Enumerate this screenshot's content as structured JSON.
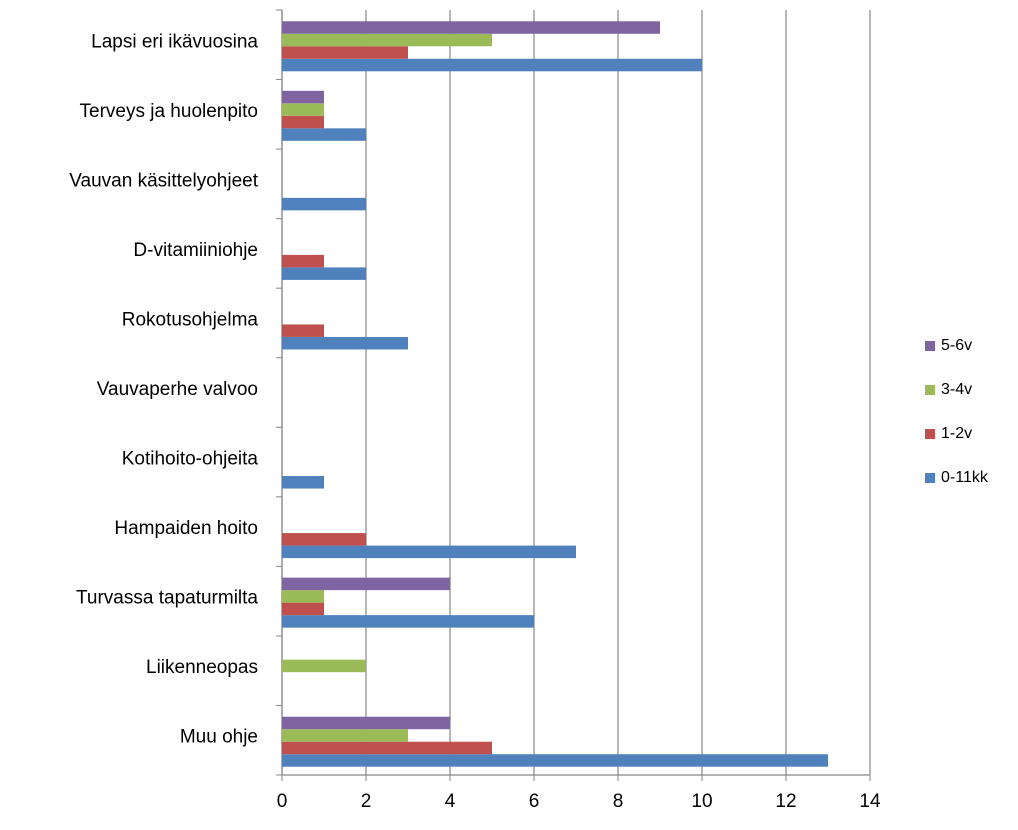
{
  "chart_data": {
    "type": "bar",
    "orientation": "horizontal",
    "categories": [
      "Lapsi eri ikävuosina",
      "Terveys ja huolenpito",
      "Vauvan käsittelyohjeet",
      "D-vitamiiniohje",
      "Rokotusohjelma",
      "Vauvaperhe valvoo",
      "Kotihoito-ohjeita",
      "Hampaiden hoito",
      "Turvassa tapaturmilta",
      "Liikenneopas",
      "Muu ohje"
    ],
    "series": [
      {
        "name": "0-11kk",
        "color": "#4f81bd",
        "values": [
          10,
          2,
          2,
          2,
          3,
          0,
          1,
          7,
          6,
          0,
          13
        ]
      },
      {
        "name": "1-2v",
        "color": "#c0504d",
        "values": [
          3,
          1,
          0,
          1,
          1,
          0,
          0,
          2,
          1,
          0,
          5
        ]
      },
      {
        "name": "3-4v",
        "color": "#9bbb59",
        "values": [
          5,
          1,
          0,
          0,
          0,
          0,
          0,
          0,
          1,
          2,
          3
        ]
      },
      {
        "name": "5-6v",
        "color": "#8064a2",
        "values": [
          9,
          1,
          0,
          0,
          0,
          0,
          0,
          0,
          4,
          0,
          4
        ]
      }
    ],
    "xlim": [
      0,
      14
    ],
    "xticks": [
      0,
      2,
      4,
      6,
      8,
      10,
      12,
      14
    ],
    "grid": true,
    "legend": "right"
  }
}
